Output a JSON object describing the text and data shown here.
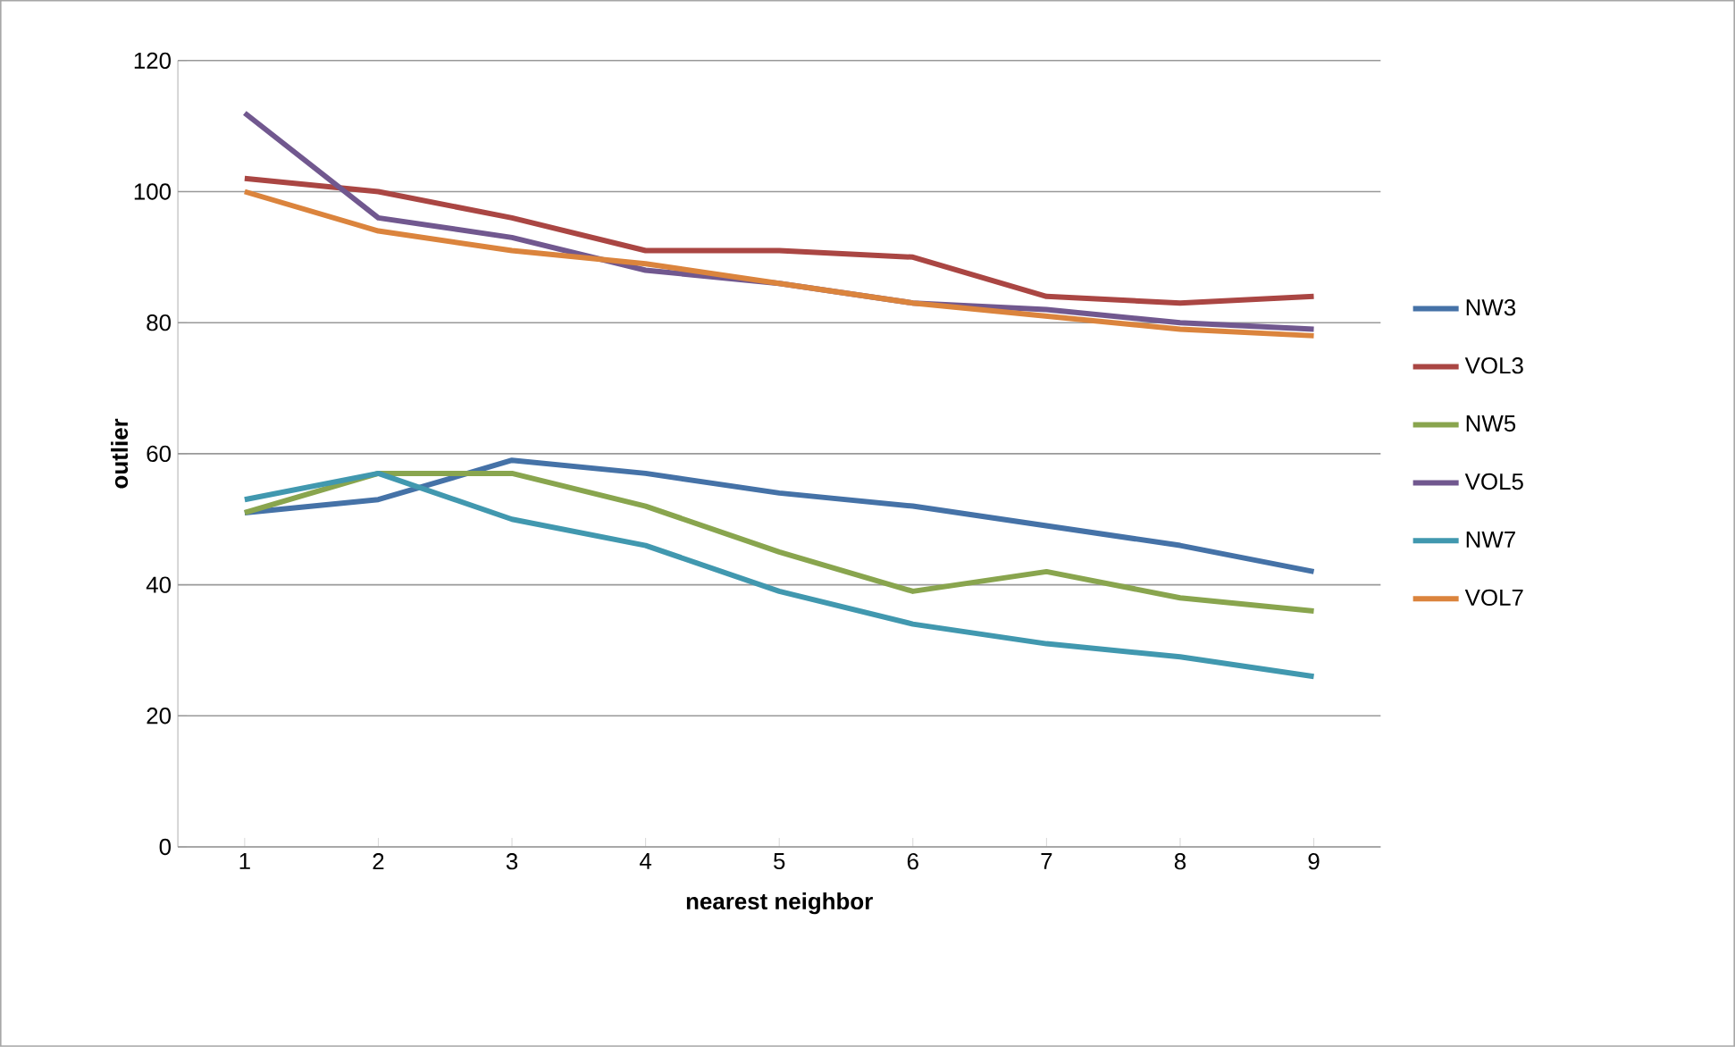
{
  "chart_data": {
    "type": "line",
    "xlabel": "nearest neighbor",
    "ylabel": "outlier",
    "categories": [
      "1",
      "2",
      "3",
      "4",
      "5",
      "6",
      "7",
      "8",
      "9"
    ],
    "ylim": [
      0,
      120
    ],
    "yticks": [
      0,
      20,
      40,
      60,
      80,
      100,
      120
    ],
    "grid": "y",
    "legend": "right",
    "marker": "none",
    "line_style": "solid",
    "series": [
      {
        "name": "NW3",
        "color": "#4572a7",
        "values": [
          51,
          53,
          59,
          57,
          54,
          52,
          49,
          46,
          42
        ]
      },
      {
        "name": "VOL3",
        "color": "#aa4643",
        "values": [
          102,
          100,
          96,
          91,
          91,
          90,
          84,
          83,
          84
        ]
      },
      {
        "name": "NW5",
        "color": "#89a54e",
        "values": [
          51,
          57,
          57,
          52,
          45,
          39,
          42,
          38,
          36
        ]
      },
      {
        "name": "VOL5",
        "color": "#71588f",
        "values": [
          112,
          96,
          93,
          88,
          86,
          83,
          82,
          80,
          79
        ]
      },
      {
        "name": "NW7",
        "color": "#4198af",
        "values": [
          53,
          57,
          50,
          46,
          39,
          34,
          31,
          29,
          26
        ]
      },
      {
        "name": "VOL7",
        "color": "#db843d",
        "values": [
          100,
          94,
          91,
          89,
          86,
          83,
          81,
          79,
          78
        ]
      }
    ]
  }
}
